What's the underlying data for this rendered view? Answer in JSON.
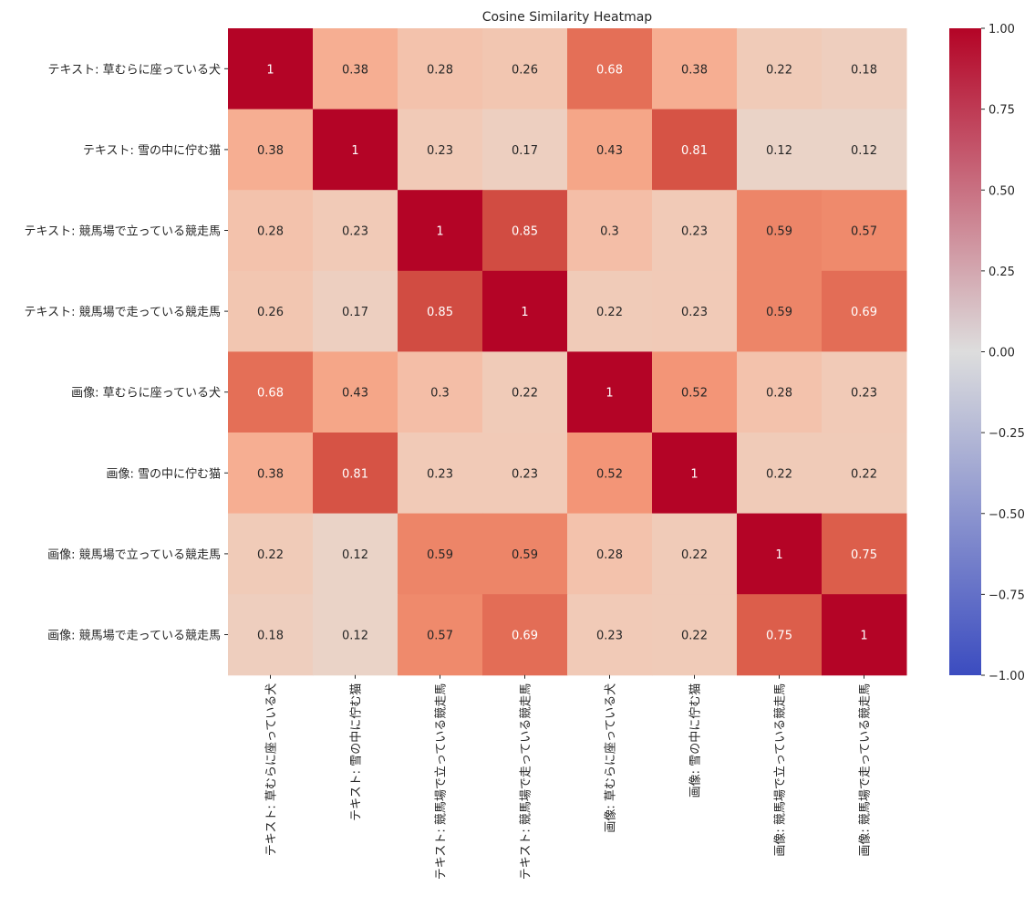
{
  "chart_data": {
    "type": "heatmap",
    "title": "Cosine Similarity Heatmap",
    "xlabel": "",
    "ylabel": "",
    "row_labels": [
      "テキスト: 草むらに座っている犬",
      "テキスト: 雪の中に佇む猫",
      "テキスト: 競馬場で立っている競走馬",
      "テキスト: 競馬場で走っている競走馬",
      "画像: 草むらに座っている犬",
      "画像: 雪の中に佇む猫",
      "画像: 競馬場で立っている競走馬",
      "画像: 競馬場で走っている競走馬"
    ],
    "col_labels": [
      "テキスト: 草むらに座っている犬",
      "テキスト: 雪の中に佇む猫",
      "テキスト: 競馬場で立っている競走馬",
      "テキスト: 競馬場で走っている競走馬",
      "画像: 草むらに座っている犬",
      "画像: 雪の中に佇む猫",
      "画像: 競馬場で立っている競走馬",
      "画像: 競馬場で走っている競走馬"
    ],
    "values": [
      [
        1,
        0.38,
        0.28,
        0.26,
        0.68,
        0.38,
        0.22,
        0.18
      ],
      [
        0.38,
        1,
        0.23,
        0.17,
        0.43,
        0.81,
        0.12,
        0.12
      ],
      [
        0.28,
        0.23,
        1,
        0.85,
        0.3,
        0.23,
        0.59,
        0.57
      ],
      [
        0.26,
        0.17,
        0.85,
        1,
        0.22,
        0.23,
        0.59,
        0.69
      ],
      [
        0.68,
        0.43,
        0.3,
        0.22,
        1,
        0.52,
        0.28,
        0.23
      ],
      [
        0.38,
        0.81,
        0.23,
        0.23,
        0.52,
        1,
        0.22,
        0.22
      ],
      [
        0.22,
        0.12,
        0.59,
        0.59,
        0.28,
        0.22,
        1,
        0.75
      ],
      [
        0.18,
        0.12,
        0.57,
        0.69,
        0.23,
        0.22,
        0.75,
        1
      ]
    ],
    "annotations": [
      [
        "1",
        "0.38",
        "0.28",
        "0.26",
        "0.68",
        "0.38",
        "0.22",
        "0.18"
      ],
      [
        "0.38",
        "1",
        "0.23",
        "0.17",
        "0.43",
        "0.81",
        "0.12",
        "0.12"
      ],
      [
        "0.28",
        "0.23",
        "1",
        "0.85",
        "0.3",
        "0.23",
        "0.59",
        "0.57"
      ],
      [
        "0.26",
        "0.17",
        "0.85",
        "1",
        "0.22",
        "0.23",
        "0.59",
        "0.69"
      ],
      [
        "0.68",
        "0.43",
        "0.3",
        "0.22",
        "1",
        "0.52",
        "0.28",
        "0.23"
      ],
      [
        "0.38",
        "0.81",
        "0.23",
        "0.23",
        "0.52",
        "1",
        "0.22",
        "0.22"
      ],
      [
        "0.22",
        "0.12",
        "0.59",
        "0.59",
        "0.28",
        "0.22",
        "1",
        "0.75"
      ],
      [
        "0.18",
        "0.12",
        "0.57",
        "0.69",
        "0.23",
        "0.22",
        "0.75",
        "1"
      ]
    ],
    "colormap": "coolwarm",
    "vmin": -1,
    "vmax": 1,
    "colorbar_ticks": [
      1,
      0.75,
      0.5,
      0.25,
      0,
      -0.25,
      -0.5,
      -0.75,
      -1
    ],
    "colorbar_tick_labels": [
      "1.00",
      "0.75",
      "0.50",
      "0.25",
      "0.00",
      "−0.25",
      "−0.50",
      "−0.75",
      "−1.00"
    ],
    "colormap_stops": {
      "low": "#3b4cc0",
      "mid": "#dddddd",
      "high": "#b40426"
    },
    "colors": {
      "text": "#262626",
      "annotation_dark_bg_text": "#ffffff",
      "annotation_light_bg_text": "#262626"
    }
  }
}
